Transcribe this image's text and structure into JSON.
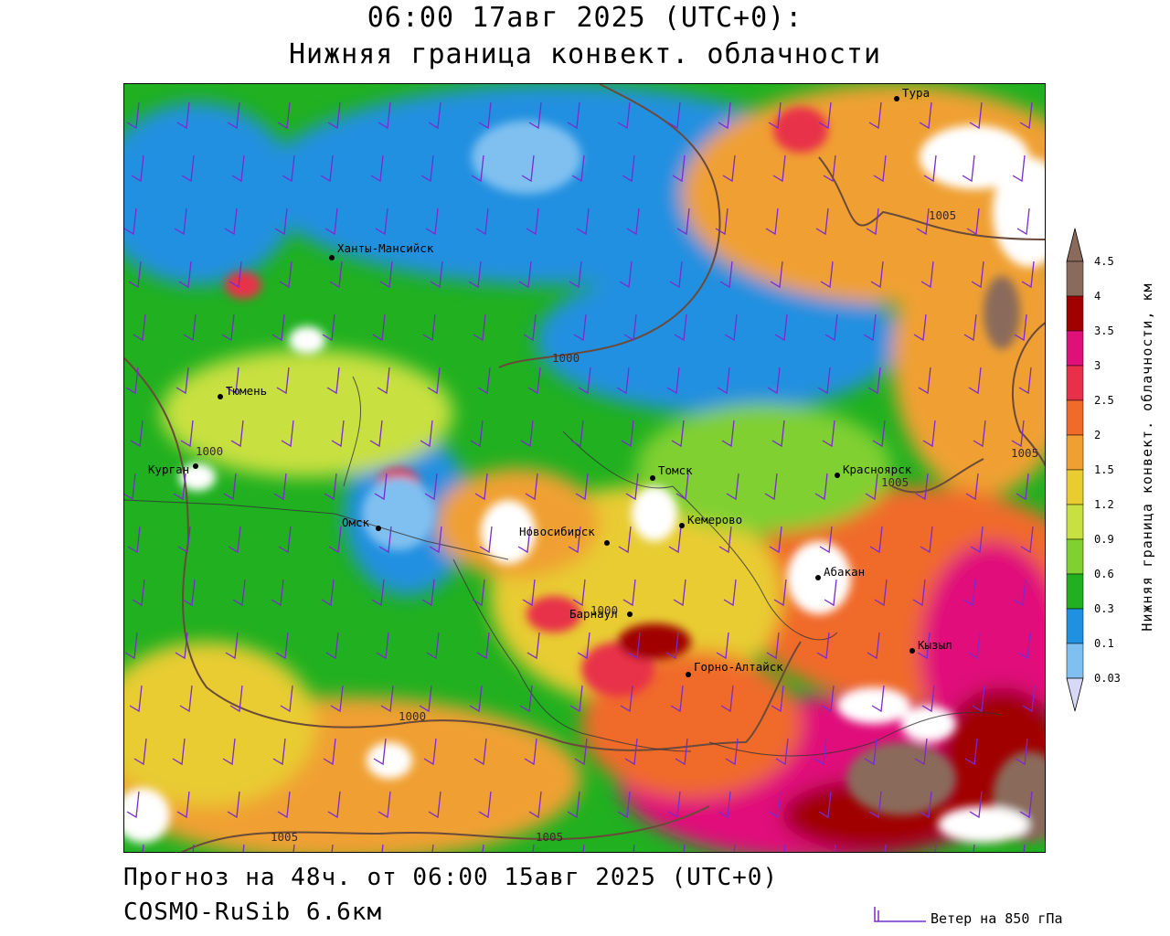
{
  "header": {
    "title_line1": "06:00 17авг 2025 (UTC+0):",
    "title_line2": "Нижняя граница конвект. облачности"
  },
  "footer": {
    "forecast": "Прогноз на 48ч. от 06:00 15авг 2025 (UTC+0)",
    "model": "COSMO-RuSib 6.6км",
    "wind_legend": "Ветер на 850 гПа"
  },
  "colorbar": {
    "title": "Нижняя граница конвект. облачности, км",
    "ticks": [
      "4.5",
      "4",
      "3.5",
      "3",
      "2.5",
      "2",
      "1.5",
      "1.2",
      "0.9",
      "0.6",
      "0.3",
      "0.1",
      "0.03"
    ],
    "colors": [
      "#8a6a5a",
      "#a00000",
      "#e0107a",
      "#e8304a",
      "#f06a2a",
      "#f0a030",
      "#e8cc30",
      "#c8e040",
      "#80d030",
      "#20b020",
      "#2090e0",
      "#80c0f0",
      "#d8d8f8"
    ]
  },
  "cities": [
    {
      "name": "Тура"
    },
    {
      "name": "Ханты-Мансийск"
    },
    {
      "name": "Тюмень"
    },
    {
      "name": "Курган"
    },
    {
      "name": "Омск"
    },
    {
      "name": "Новосибирск"
    },
    {
      "name": "Томск"
    },
    {
      "name": "Кемерово"
    },
    {
      "name": "Красноярск"
    },
    {
      "name": "Абакан"
    },
    {
      "name": "Барнаул"
    },
    {
      "name": "Горно-Алтайск"
    },
    {
      "name": "Кызыл"
    }
  ],
  "isobar_labels": [
    "1005",
    "1000",
    "1000",
    "1005",
    "1005",
    "1000",
    "1000",
    "1005",
    "1005"
  ],
  "palette": {
    "grey": "#8a6a5a",
    "maroon": "#a00000",
    "magenta": "#e0107a",
    "red": "#e8304a",
    "orange": "#f06a2a",
    "lightorange": "#f0a030",
    "yellow": "#e8cc30",
    "yellowgreen": "#c8e040",
    "lightgreen": "#80d030",
    "green": "#20b020",
    "blue": "#2090e0",
    "lightblue": "#80c0f0",
    "pale": "#d8d8f8",
    "isobar": "#6a4a3a",
    "wind_barb": "#7a2ad0"
  }
}
